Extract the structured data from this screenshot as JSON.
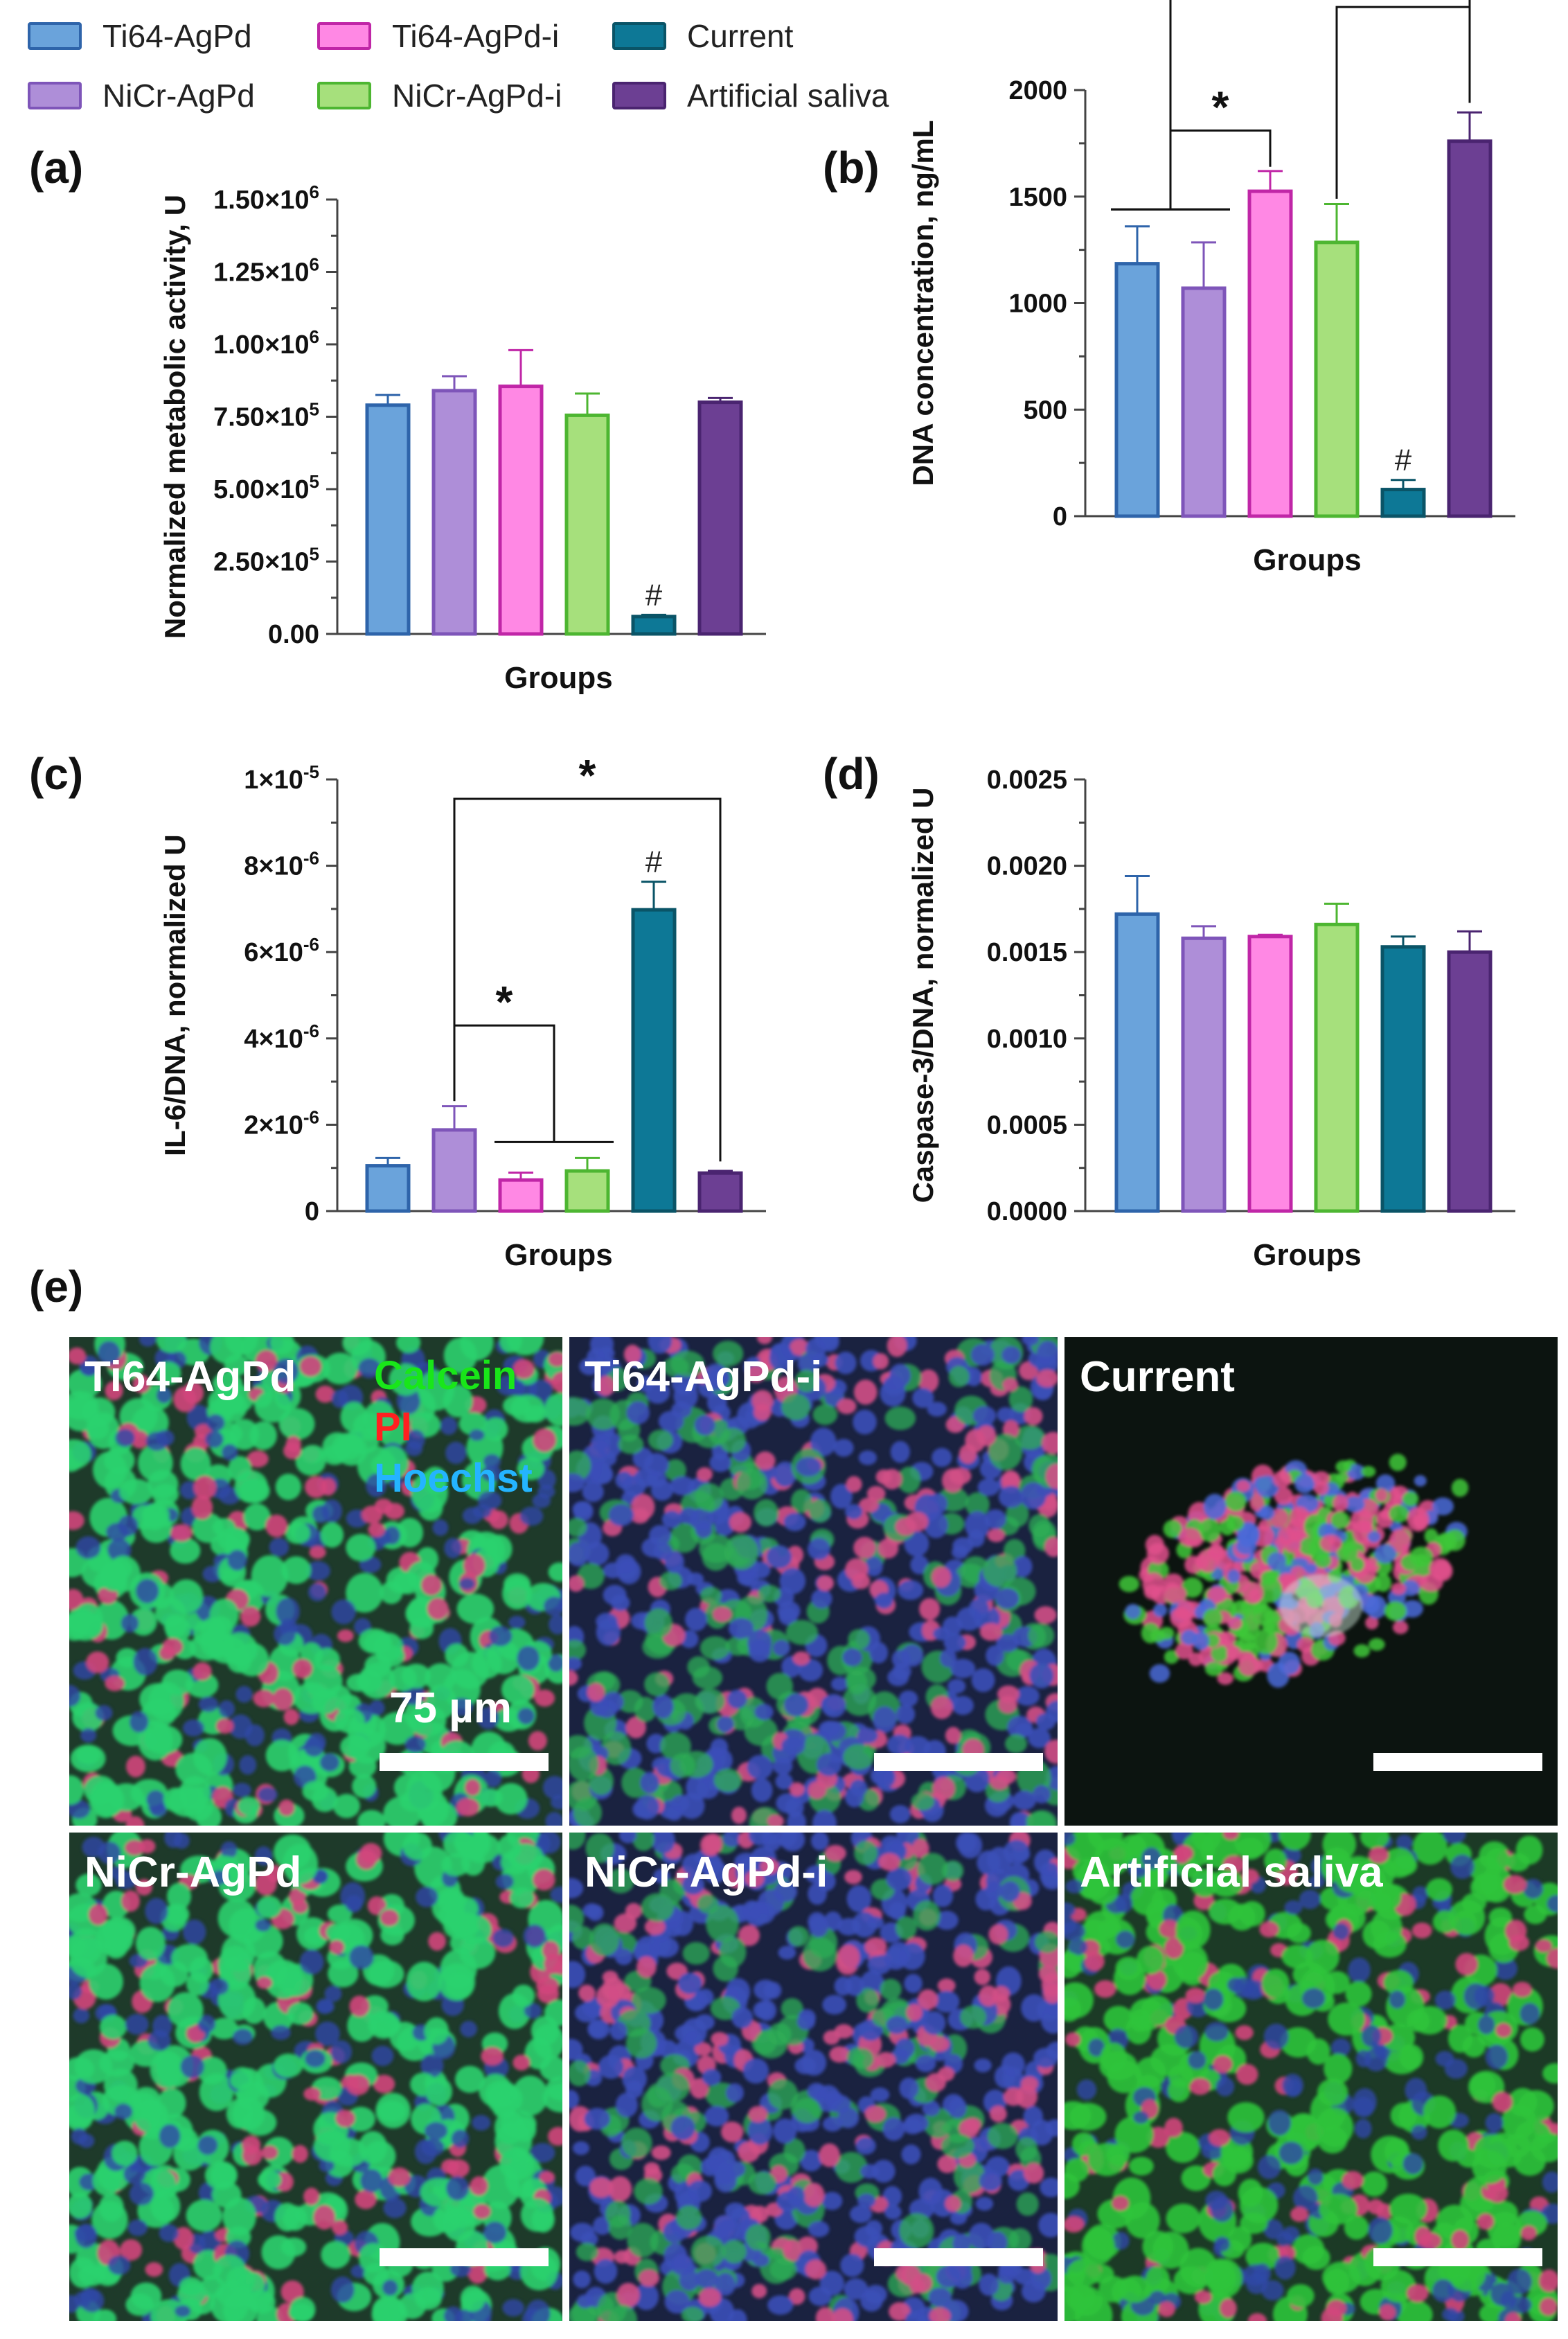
{
  "legend": [
    {
      "label": "Ti64-AgPd",
      "fill": "#6aa3db",
      "stroke": "#2e64aa"
    },
    {
      "label": "Ti64-AgPd-i",
      "fill": "#ff88e4",
      "stroke": "#c026a7"
    },
    {
      "label": "Current",
      "fill": "#0d7896",
      "stroke": "#0a5467"
    },
    {
      "label": "NiCr-AgPd",
      "fill": "#ae8ed8",
      "stroke": "#7e55b9"
    },
    {
      "label": "NiCr-AgPd-i",
      "fill": "#a6e07c",
      "stroke": "#4db631"
    },
    {
      "label": "Artificial saliva",
      "fill": "#6c3f93",
      "stroke": "#4a2470"
    }
  ],
  "colors": {
    "Ti64-AgPd": {
      "fill": "#6aa3db",
      "stroke": "#2e64aa"
    },
    "NiCr-AgPd": {
      "fill": "#ae8ed8",
      "stroke": "#7e55b9"
    },
    "Ti64-AgPd-i": {
      "fill": "#ff88e4",
      "stroke": "#c026a7"
    },
    "NiCr-AgPd-i": {
      "fill": "#a6e07c",
      "stroke": "#4db631"
    },
    "Current": {
      "fill": "#0d7896",
      "stroke": "#0a5467"
    },
    "Artificial saliva": {
      "fill": "#6c3f93",
      "stroke": "#4a2470"
    }
  },
  "chart_data": [
    {
      "id": "a",
      "panel_label": "(a)",
      "type": "bar",
      "categories": [
        "Ti64-AgPd",
        "NiCr-AgPd",
        "Ti64-AgPd-i",
        "NiCr-AgPd-i",
        "Current",
        "Artificial saliva"
      ],
      "values": [
        790000,
        840000,
        855000,
        755000,
        60000,
        800000
      ],
      "errors": [
        35000,
        50000,
        125000,
        75000,
        6000,
        15000
      ],
      "ylim": [
        0,
        1500000
      ],
      "yticks": [
        0,
        250000,
        500000,
        750000,
        1000000,
        1250000,
        1500000
      ],
      "ytick_labels": [
        {
          "m": "0.00",
          "e": ""
        },
        {
          "m": "2.50×10",
          "e": "5"
        },
        {
          "m": "5.00×10",
          "e": "5"
        },
        {
          "m": "7.50×10",
          "e": "5"
        },
        {
          "m": "1.00×10",
          "e": "6"
        },
        {
          "m": "1.25×10",
          "e": "6"
        },
        {
          "m": "1.50×10",
          "e": "6"
        }
      ],
      "ylabel": "Normalized metabolic activity, U",
      "xlabel": "Groups",
      "marks": [
        {
          "index": 4,
          "symbol": "#"
        }
      ],
      "significance": []
    },
    {
      "id": "b",
      "panel_label": "(b)",
      "type": "bar",
      "categories": [
        "Ti64-AgPd",
        "NiCr-AgPd",
        "Ti64-AgPd-i",
        "NiCr-AgPd-i",
        "Current",
        "Artificial saliva"
      ],
      "values": [
        1185,
        1070,
        1525,
        1285,
        125,
        1760
      ],
      "errors": [
        175,
        215,
        95,
        180,
        45,
        135
      ],
      "ylim": [
        0,
        2000
      ],
      "yticks": [
        0,
        500,
        1000,
        1500,
        2000
      ],
      "ytick_labels": [
        {
          "m": "0",
          "e": ""
        },
        {
          "m": "500",
          "e": ""
        },
        {
          "m": "1000",
          "e": ""
        },
        {
          "m": "1500",
          "e": ""
        },
        {
          "m": "2000",
          "e": ""
        }
      ],
      "ylabel": "DNA concentration,  ng/mL",
      "xlabel": "Groups",
      "marks": [
        {
          "index": 4,
          "symbol": "#"
        }
      ],
      "significance": [
        {
          "label": "*",
          "from_group": [
            0,
            1
          ],
          "from_base": 1440,
          "to": 2,
          "to_base": 1640,
          "level": 1810
        },
        {
          "label": "*",
          "from_group": [
            0,
            1
          ],
          "from_base": 1440,
          "to": 5,
          "to_base": 1940,
          "level": 2670
        },
        {
          "label": "*",
          "from": 3,
          "from_base": 1490,
          "to": 5,
          "to_base": 1940,
          "level": 2390
        }
      ]
    },
    {
      "id": "c",
      "panel_label": "(c)",
      "type": "bar",
      "categories": [
        "Ti64-AgPd",
        "NiCr-AgPd",
        "Ti64-AgPd-i",
        "NiCr-AgPd-i",
        "Current",
        "Artificial saliva"
      ],
      "values": [
        1.05e-06,
        1.88e-06,
        7.2e-07,
        9.3e-07,
        6.98e-06,
        8.8e-07
      ],
      "errors": [
        1.8e-07,
        5.5e-07,
        1.7e-07,
        3e-07,
        6.5e-07,
        5e-08
      ],
      "ylim": [
        0,
        1e-05
      ],
      "yticks": [
        0,
        2e-06,
        4e-06,
        6e-06,
        8e-06,
        1e-05
      ],
      "ytick_labels": [
        {
          "m": "0",
          "e": ""
        },
        {
          "m": "2×10",
          "e": "-6"
        },
        {
          "m": "4×10",
          "e": "-6"
        },
        {
          "m": "6×10",
          "e": "-6"
        },
        {
          "m": "8×10",
          "e": "-6"
        },
        {
          "m": "1×10",
          "e": "-5"
        }
      ],
      "ylabel": "IL-6/DNA, normalized U",
      "xlabel": "Groups",
      "marks": [
        {
          "index": 4,
          "symbol": "#"
        }
      ],
      "significance": [
        {
          "label": "*",
          "from": 1,
          "from_base": 2.55e-06,
          "to_group": [
            2,
            3
          ],
          "to_base": 1.6e-06,
          "level": 4.3e-06
        },
        {
          "label": "*",
          "from": 1,
          "from_base": 2.55e-06,
          "to": 5,
          "to_base": 1.15e-06,
          "level": 9.55e-06
        }
      ]
    },
    {
      "id": "d",
      "panel_label": "(d)",
      "type": "bar",
      "categories": [
        "Ti64-AgPd",
        "NiCr-AgPd",
        "Ti64-AgPd-i",
        "NiCr-AgPd-i",
        "Current",
        "Artificial saliva"
      ],
      "values": [
        0.00172,
        0.00158,
        0.00159,
        0.00166,
        0.00153,
        0.0015
      ],
      "errors": [
        0.00022,
        7e-05,
        1e-05,
        0.00012,
        6e-05,
        0.00012
      ],
      "ylim": [
        0,
        0.0025
      ],
      "yticks": [
        0,
        0.0005,
        0.001,
        0.0015,
        0.002,
        0.0025
      ],
      "ytick_labels": [
        {
          "m": "0.0000",
          "e": ""
        },
        {
          "m": "0.0005",
          "e": ""
        },
        {
          "m": "0.0010",
          "e": ""
        },
        {
          "m": "0.0015",
          "e": ""
        },
        {
          "m": "0.0020",
          "e": ""
        },
        {
          "m": "0.0025",
          "e": ""
        }
      ],
      "ylabel": "Caspase-3/DNA, normalized U",
      "xlabel": "Groups",
      "marks": [],
      "significance": []
    }
  ],
  "panel_e": {
    "label": "(e)",
    "stains": [
      {
        "name": "Calcein",
        "color": "#19e619"
      },
      {
        "name": "PI",
        "color": "#ff2020"
      },
      {
        "name": "Hoechst",
        "color": "#24b4ff"
      }
    ],
    "scale_bar": "75 µm",
    "tiles": [
      {
        "title": "Ti64-AgPd",
        "profile": "green"
      },
      {
        "title": "Ti64-AgPd-i",
        "profile": "blue"
      },
      {
        "title": "Current",
        "profile": "cluster"
      },
      {
        "title": "NiCr-AgPd",
        "profile": "green"
      },
      {
        "title": "NiCr-AgPd-i",
        "profile": "blue"
      },
      {
        "title": "Artificial saliva",
        "profile": "green2"
      }
    ]
  }
}
